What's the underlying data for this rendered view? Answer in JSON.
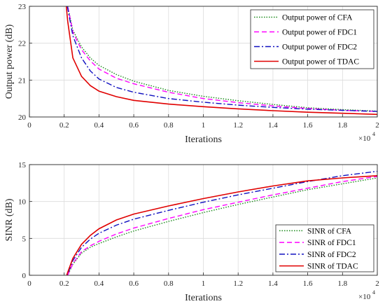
{
  "chart_data": [
    {
      "type": "line",
      "xlabel": "Iterations",
      "ylabel": "Output power (dB)",
      "x_multiplier_label": "×10",
      "x_multiplier_exp": "4",
      "xlim": [
        0,
        2
      ],
      "ylim": [
        20,
        23
      ],
      "xticks": [
        "0",
        "0.2",
        "0.4",
        "0.6",
        "0.8",
        "1",
        "1.2",
        "1.4",
        "1.6",
        "1.8",
        "2"
      ],
      "yticks": [
        "20",
        "21",
        "22",
        "23"
      ],
      "grid": true,
      "legend_position": "top-right",
      "x": [
        0.2,
        0.22,
        0.25,
        0.3,
        0.35,
        0.4,
        0.5,
        0.6,
        0.8,
        1.0,
        1.2,
        1.4,
        1.6,
        1.8,
        2.0
      ],
      "series": [
        {
          "name": "Output power of CFA",
          "color": "#1a8a1a",
          "style": "dotted",
          "values": [
            23.6,
            23.0,
            22.35,
            21.9,
            21.6,
            21.4,
            21.15,
            20.97,
            20.72,
            20.56,
            20.44,
            20.34,
            20.25,
            20.2,
            20.16
          ]
        },
        {
          "name": "Output power of FDC1",
          "color": "#ff00ff",
          "style": "dashed",
          "values": [
            23.6,
            23.0,
            22.3,
            21.82,
            21.52,
            21.3,
            21.05,
            20.9,
            20.67,
            20.5,
            20.39,
            20.3,
            20.23,
            20.18,
            20.15
          ]
        },
        {
          "name": "Output power of FDC2",
          "color": "#1010c0",
          "style": "dashdot",
          "values": [
            23.6,
            22.95,
            22.2,
            21.6,
            21.25,
            21.03,
            20.8,
            20.67,
            20.5,
            20.4,
            20.32,
            20.26,
            20.21,
            20.18,
            20.15
          ]
        },
        {
          "name": "Output power of TDAC",
          "color": "#e00000",
          "style": "solid",
          "values": [
            23.6,
            22.6,
            21.6,
            21.1,
            20.85,
            20.7,
            20.55,
            20.45,
            20.35,
            20.28,
            20.22,
            20.17,
            20.13,
            20.1,
            20.07
          ]
        }
      ]
    },
    {
      "type": "line",
      "xlabel": "Iterations",
      "ylabel": "SINR (dB)",
      "x_multiplier_label": "×10",
      "x_multiplier_exp": "4",
      "xlim": [
        0,
        2
      ],
      "ylim": [
        0,
        15
      ],
      "xticks": [
        "0",
        "0.2",
        "0.4",
        "0.6",
        "0.8",
        "1",
        "1.2",
        "1.4",
        "1.6",
        "1.8",
        "2"
      ],
      "yticks": [
        "0",
        "5",
        "10",
        "15"
      ],
      "grid": true,
      "legend_position": "bottom-right",
      "x": [
        0.2,
        0.22,
        0.25,
        0.3,
        0.35,
        0.4,
        0.5,
        0.6,
        0.8,
        1.0,
        1.2,
        1.4,
        1.6,
        1.8,
        2.0
      ],
      "series": [
        {
          "name": "SINR of CFA",
          "color": "#1a8a1a",
          "style": "dotted",
          "values": [
            -1,
            0,
            1.5,
            3.0,
            3.8,
            4.3,
            5.2,
            6.0,
            7.3,
            8.5,
            9.6,
            10.6,
            11.6,
            12.4,
            13.2
          ]
        },
        {
          "name": "SINR of FDC1",
          "color": "#ff00ff",
          "style": "dashed",
          "values": [
            -1,
            0,
            1.6,
            3.2,
            4.0,
            4.6,
            5.6,
            6.4,
            7.7,
            8.9,
            9.9,
            10.9,
            11.8,
            12.7,
            13.4
          ]
        },
        {
          "name": "SINR of FDC2",
          "color": "#1010c0",
          "style": "dashdot",
          "values": [
            -1,
            0.2,
            2.0,
            3.8,
            4.9,
            5.7,
            6.8,
            7.6,
            8.8,
            9.9,
            10.9,
            11.8,
            12.7,
            13.5,
            14.1
          ]
        },
        {
          "name": "SINR of TDAC",
          "color": "#e00000",
          "style": "solid",
          "values": [
            -1,
            0.4,
            2.3,
            4.2,
            5.4,
            6.3,
            7.5,
            8.3,
            9.4,
            10.4,
            11.3,
            12.1,
            12.8,
            13.2,
            13.5
          ]
        }
      ]
    }
  ]
}
